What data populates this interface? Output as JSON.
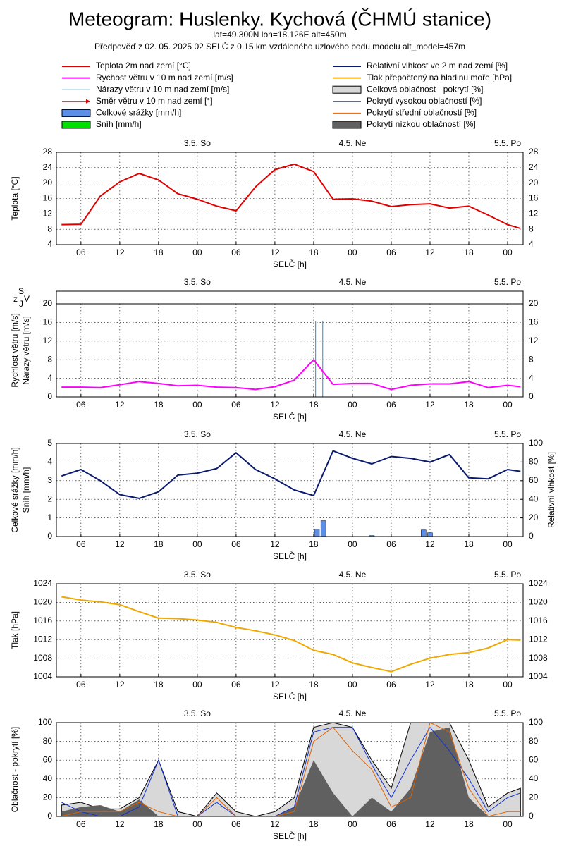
{
  "header": {
    "title": "Meteogram: Huslenky. Kychová (ČHMÚ stanice)",
    "subtitle": "lat=49.300N lon=18.126E alt=450m",
    "forecast_note": "Předpověď z 02. 05. 2025 02 SELČ z 0.15 km vzdáleného uzlového bodu modelu alt_model=457m"
  },
  "legend": [
    {
      "label": "Teplota 2m nad zemí [°C]",
      "color": "#e00000",
      "style": "line",
      "width": 2
    },
    {
      "label": "Rychost větru v 10 m nad zemí [m/s]",
      "color": "#ff00ff",
      "style": "line",
      "width": 2
    },
    {
      "label": "Nárazy větru v 10 m nad zemí [m/s]",
      "color": "#1e90c8",
      "style": "line",
      "width": 1
    },
    {
      "label": "Směr větru v 10 m nad zemí [°]",
      "color": "#e00000",
      "style": "arrow",
      "width": 1
    },
    {
      "label": "Celkové srážky [mm/h]",
      "color": "#5a8ee8",
      "style": "box",
      "width": 1
    },
    {
      "label": "Sníh [mm/h]",
      "color": "#00e000",
      "style": "box",
      "width": 1
    },
    {
      "label": "Relativní vlhkost ve 2 m nad zemí [%]",
      "color": "#0a1a70",
      "style": "line",
      "width": 2
    },
    {
      "label": "Tlak přepočtený na hladinu moře [hPa]",
      "color": "#f0a800",
      "style": "line",
      "width": 2
    },
    {
      "label": "Celková oblačnost - pokrytí [%]",
      "color": "#d8d8d8",
      "style": "box",
      "width": 1
    },
    {
      "label": "Pokrytí vysokou oblačností [%]",
      "color": "#1030d0",
      "style": "line",
      "width": 1
    },
    {
      "label": "Pokrytí střední oblačností [%]",
      "color": "#e06000",
      "style": "line",
      "width": 1
    },
    {
      "label": "Pokrytí nízkou oblačností [%]",
      "color": "#606060",
      "style": "box",
      "width": 1
    }
  ],
  "chart_data": [
    {
      "type": "line",
      "ylabel": [
        "Teplota [°C]"
      ],
      "xlabel": "SELČ [h]",
      "grid": true,
      "mirror_y": true,
      "x": [
        3,
        6,
        9,
        12,
        15,
        18,
        21,
        24,
        27,
        30,
        33,
        36,
        39,
        42,
        45,
        48,
        51,
        54,
        57,
        60,
        63,
        66,
        69,
        72,
        74
      ],
      "xlim": [
        2.2,
        74.4
      ],
      "ylim": [
        4,
        28
      ],
      "yticks": [
        4,
        8,
        12,
        16,
        20,
        24,
        28
      ],
      "xticks": [
        {
          "value": 6,
          "label": "06"
        },
        {
          "value": 12,
          "label": "12"
        },
        {
          "value": 18,
          "label": "18"
        },
        {
          "value": 24,
          "label": "00"
        },
        {
          "value": 30,
          "label": "06"
        },
        {
          "value": 36,
          "label": "12"
        },
        {
          "value": 42,
          "label": "18"
        },
        {
          "value": 48,
          "label": "00"
        },
        {
          "value": 54,
          "label": "06"
        },
        {
          "value": 60,
          "label": "12"
        },
        {
          "value": 66,
          "label": "18"
        },
        {
          "value": 72,
          "label": "00"
        }
      ],
      "top_ticks": [
        {
          "value": 24,
          "label": "3.5. So"
        },
        {
          "value": 48,
          "label": "4.5. Ne"
        },
        {
          "value": 72,
          "label": "5.5. Po"
        }
      ],
      "series": [
        {
          "style": "line",
          "color": "#e00000",
          "width": 2,
          "values": [
            9.2,
            9.3,
            16.6,
            20.3,
            22.5,
            20.8,
            17.2,
            15.8,
            14.0,
            12.8,
            19.0,
            23.5,
            24.9,
            23.0,
            15.8,
            15.9,
            15.3,
            13.9,
            14.4,
            14.6,
            13.5,
            14.0,
            11.7,
            9.2,
            8.2
          ]
        }
      ]
    },
    {
      "type": "line",
      "ylabel": [
        "Rychlost větru [m/s]",
        "Nárazy větru [m/s]"
      ],
      "xlabel": "SELČ [h]",
      "grid": true,
      "mirror_y": true,
      "direction_labels": [
        "z",
        "S",
        "J",
        "V"
      ],
      "x": [
        3,
        6,
        9,
        12,
        15,
        18,
        21,
        24,
        27,
        30,
        33,
        36,
        39,
        42,
        45,
        48,
        51,
        54,
        57,
        60,
        63,
        66,
        69,
        72,
        74
      ],
      "xlim": [
        2.2,
        74.4
      ],
      "ylim": [
        0,
        20
      ],
      "yticks": [
        0,
        4,
        8,
        12,
        16,
        20
      ],
      "xticks": [
        {
          "value": 6,
          "label": "06"
        },
        {
          "value": 12,
          "label": "12"
        },
        {
          "value": 18,
          "label": "18"
        },
        {
          "value": 24,
          "label": "00"
        },
        {
          "value": 30,
          "label": "06"
        },
        {
          "value": 36,
          "label": "12"
        },
        {
          "value": 42,
          "label": "18"
        },
        {
          "value": 48,
          "label": "00"
        },
        {
          "value": 54,
          "label": "06"
        },
        {
          "value": 60,
          "label": "12"
        },
        {
          "value": 66,
          "label": "18"
        },
        {
          "value": 72,
          "label": "00"
        }
      ],
      "top_ticks": [
        {
          "value": 24,
          "label": "3.5. So"
        },
        {
          "value": 48,
          "label": "4.5. Ne"
        },
        {
          "value": 72,
          "label": "5.5. Po"
        }
      ],
      "series": [
        {
          "style": "spike",
          "color": "#1e90c8",
          "width": 1,
          "x": [
            42.3,
            43.4
          ],
          "values": [
            16.3,
            16.3
          ]
        },
        {
          "style": "line",
          "color": "#ff00ff",
          "width": 2,
          "values": [
            2.1,
            2.1,
            2.0,
            2.6,
            3.3,
            2.9,
            2.4,
            2.5,
            2.1,
            2.0,
            1.6,
            2.2,
            3.6,
            8.0,
            2.7,
            2.9,
            2.9,
            1.6,
            2.5,
            2.8,
            2.8,
            3.3,
            2.0,
            2.5,
            2.2
          ]
        }
      ]
    },
    {
      "type": "bar",
      "ylabel": [
        "Celkové srážky [mm/h]",
        "Sníh [mm/h]"
      ],
      "y2label": "Relativní vlhkost [%]",
      "xlabel": "SELČ [h]",
      "grid": true,
      "x": [
        3,
        6,
        9,
        12,
        15,
        18,
        21,
        24,
        27,
        30,
        33,
        36,
        39,
        42,
        45,
        48,
        51,
        54,
        57,
        60,
        63,
        66,
        69,
        72,
        74
      ],
      "xlim": [
        2.2,
        74.4
      ],
      "ylim": [
        0,
        5
      ],
      "yticks": [
        0,
        1,
        2,
        3,
        4,
        5
      ],
      "y2lim": [
        0,
        100
      ],
      "y2ticks": [
        0,
        20,
        40,
        60,
        80,
        100
      ],
      "xticks": [
        {
          "value": 6,
          "label": "06"
        },
        {
          "value": 12,
          "label": "12"
        },
        {
          "value": 18,
          "label": "18"
        },
        {
          "value": 24,
          "label": "00"
        },
        {
          "value": 30,
          "label": "06"
        },
        {
          "value": 36,
          "label": "12"
        },
        {
          "value": 42,
          "label": "18"
        },
        {
          "value": 48,
          "label": "00"
        },
        {
          "value": 54,
          "label": "06"
        },
        {
          "value": 60,
          "label": "12"
        },
        {
          "value": 66,
          "label": "18"
        },
        {
          "value": 72,
          "label": "00"
        }
      ],
      "top_ticks": [
        {
          "value": 24,
          "label": "3.5. So"
        },
        {
          "value": 48,
          "label": "4.5. Ne"
        },
        {
          "value": 72,
          "label": "5.5. Po"
        }
      ],
      "series": [
        {
          "style": "bar",
          "color": "#5a8ee8",
          "width": 1,
          "x": [
            42.5,
            43.5,
            51,
            59,
            60
          ],
          "values": [
            0.4,
            0.85,
            0.05,
            0.35,
            0.2
          ]
        },
        {
          "style": "line",
          "axis": "y2",
          "color": "#0a1a70",
          "width": 2,
          "values": [
            65,
            72,
            60,
            45,
            41,
            48,
            66,
            68,
            73,
            90,
            72,
            62,
            50,
            44,
            92,
            84,
            78,
            86,
            84,
            80,
            88,
            63,
            62,
            72,
            70
          ]
        }
      ]
    },
    {
      "type": "line",
      "ylabel": [
        "Tlak [hPa]"
      ],
      "xlabel": "SELČ [h]",
      "grid": true,
      "mirror_y": true,
      "x": [
        3,
        6,
        9,
        12,
        15,
        18,
        21,
        24,
        27,
        30,
        33,
        36,
        39,
        42,
        45,
        48,
        51,
        54,
        57,
        60,
        63,
        66,
        69,
        72,
        74
      ],
      "xlim": [
        2.2,
        74.4
      ],
      "ylim": [
        1004,
        1024
      ],
      "yticks": [
        1004,
        1008,
        1012,
        1016,
        1020,
        1024
      ],
      "xticks": [
        {
          "value": 6,
          "label": "06"
        },
        {
          "value": 12,
          "label": "12"
        },
        {
          "value": 18,
          "label": "18"
        },
        {
          "value": 24,
          "label": "00"
        },
        {
          "value": 30,
          "label": "06"
        },
        {
          "value": 36,
          "label": "12"
        },
        {
          "value": 42,
          "label": "18"
        },
        {
          "value": 48,
          "label": "00"
        },
        {
          "value": 54,
          "label": "06"
        },
        {
          "value": 60,
          "label": "12"
        },
        {
          "value": 66,
          "label": "18"
        },
        {
          "value": 72,
          "label": "00"
        }
      ],
      "top_ticks": [
        {
          "value": 24,
          "label": "3.5. So"
        },
        {
          "value": 48,
          "label": "4.5. Ne"
        },
        {
          "value": 72,
          "label": "5.5. Po"
        }
      ],
      "series": [
        {
          "style": "line",
          "color": "#f0a800",
          "width": 2,
          "values": [
            1021.2,
            1020.5,
            1020.1,
            1019.5,
            1018.0,
            1016.6,
            1016.5,
            1016.2,
            1015.7,
            1014.6,
            1013.9,
            1013.0,
            1011.8,
            1009.7,
            1008.8,
            1007.0,
            1006.0,
            1005.1,
            1006.7,
            1008.0,
            1008.8,
            1009.2,
            1010.2,
            1012.0,
            1011.9
          ]
        }
      ]
    },
    {
      "type": "area",
      "ylabel": [
        "Oblačnost - pokrytí [%]"
      ],
      "xlabel": "SELČ [h]",
      "grid": true,
      "mirror_y": true,
      "x": [
        3,
        6,
        9,
        12,
        15,
        18,
        21,
        24,
        27,
        30,
        33,
        36,
        39,
        42,
        45,
        48,
        51,
        54,
        57,
        60,
        63,
        66,
        69,
        72,
        74
      ],
      "xlim": [
        2.2,
        74.4
      ],
      "ylim": [
        0,
        100
      ],
      "yticks": [
        0,
        20,
        40,
        60,
        80,
        100
      ],
      "xticks": [
        {
          "value": 6,
          "label": "06"
        },
        {
          "value": 12,
          "label": "12"
        },
        {
          "value": 18,
          "label": "18"
        },
        {
          "value": 24,
          "label": "00"
        },
        {
          "value": 30,
          "label": "06"
        },
        {
          "value": 36,
          "label": "12"
        },
        {
          "value": 42,
          "label": "18"
        },
        {
          "value": 48,
          "label": "00"
        },
        {
          "value": 54,
          "label": "06"
        },
        {
          "value": 60,
          "label": "12"
        },
        {
          "value": 66,
          "label": "18"
        },
        {
          "value": 72,
          "label": "00"
        }
      ],
      "top_ticks": [
        {
          "value": 24,
          "label": "3.5. So"
        },
        {
          "value": 48,
          "label": "4.5. Ne"
        },
        {
          "value": 72,
          "label": "5.5. Po"
        }
      ],
      "series": [
        {
          "style": "area",
          "color": "#d8d8d8",
          "width": 1,
          "values": [
            12,
            15,
            8,
            8,
            20,
            60,
            5,
            0,
            25,
            5,
            0,
            5,
            20,
            95,
            100,
            95,
            60,
            30,
            100,
            100,
            100,
            60,
            10,
            25,
            30
          ]
        },
        {
          "style": "area",
          "color": "#606060",
          "width": 0,
          "values": [
            5,
            10,
            12,
            5,
            18,
            0,
            0,
            0,
            0,
            0,
            0,
            0,
            10,
            60,
            25,
            0,
            20,
            5,
            30,
            90,
            95,
            20,
            0,
            0,
            0
          ]
        },
        {
          "style": "line",
          "color": "#1030d0",
          "width": 1,
          "values": [
            15,
            5,
            0,
            0,
            10,
            60,
            0,
            0,
            15,
            0,
            0,
            0,
            10,
            90,
            95,
            95,
            55,
            20,
            60,
            95,
            70,
            40,
            5,
            20,
            25
          ]
        },
        {
          "style": "line",
          "color": "#e06000",
          "width": 1,
          "values": [
            0,
            5,
            5,
            5,
            15,
            5,
            0,
            0,
            20,
            0,
            0,
            0,
            5,
            80,
            95,
            70,
            50,
            10,
            20,
            100,
            90,
            30,
            0,
            5,
            5
          ]
        }
      ]
    }
  ]
}
